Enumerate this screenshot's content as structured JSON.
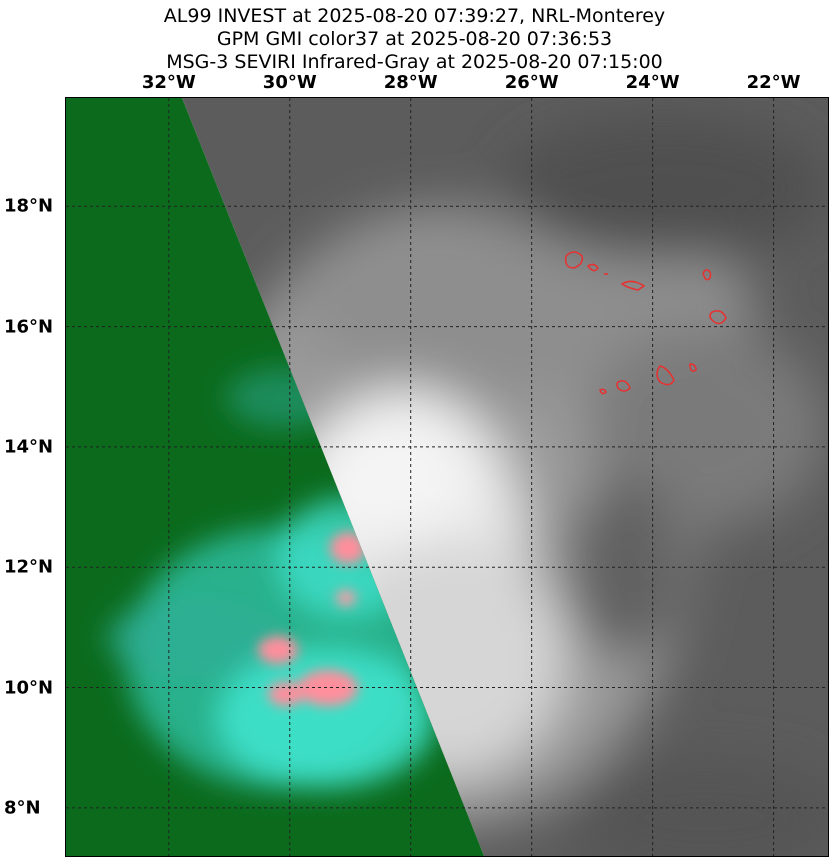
{
  "header": {
    "line1": "AL99 INVEST at 2025-08-20 07:39:27, NRL-Monterey",
    "line2": "GPM GMI color37 at 2025-08-20 07:36:53",
    "line3": "MSG-3 SEVIRI Infrared-Gray at 2025-08-20 07:15:00"
  },
  "map": {
    "lon_range": [
      -33.7,
      -21.1
    ],
    "lat_range": [
      7.2,
      19.8
    ],
    "lon_ticks": [
      {
        "value": -32,
        "label": "32°W"
      },
      {
        "value": -30,
        "label": "30°W"
      },
      {
        "value": -28,
        "label": "28°W"
      },
      {
        "value": -26,
        "label": "26°W"
      },
      {
        "value": -24,
        "label": "24°W"
      },
      {
        "value": -22,
        "label": "22°W"
      }
    ],
    "lat_ticks": [
      {
        "value": 18,
        "label": "18°N"
      },
      {
        "value": 16,
        "label": "16°N"
      },
      {
        "value": 14,
        "label": "14°N"
      },
      {
        "value": 12,
        "label": "12°N"
      },
      {
        "value": 10,
        "label": "10°N"
      },
      {
        "value": 8,
        "label": "8°N"
      }
    ],
    "colors": {
      "microwave_background": "#0a6a1a",
      "microwave_cyan": "#3fe6d0",
      "microwave_pink": "#ff8a9a",
      "ir_dark": "#5a5a5a",
      "ir_bright": "#f2f2f2",
      "coastline": "#e83030",
      "gridline": "#222222"
    }
  }
}
